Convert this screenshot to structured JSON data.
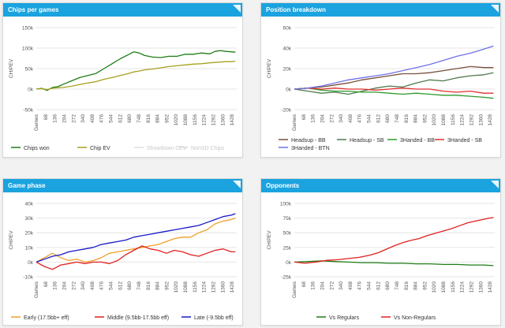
{
  "panels": [
    {
      "title": "Chips per games"
    },
    {
      "title": "Position breakdown"
    },
    {
      "title": "Game phase"
    },
    {
      "title": "Opponents"
    }
  ],
  "chart_data": [
    {
      "type": "line",
      "title": "Chips per games",
      "ylabel": "CHIPEV",
      "x_axis_label": "Games",
      "x_ticks": [
        "68",
        "136",
        "204",
        "272",
        "340",
        "408",
        "476",
        "544",
        "612",
        "680",
        "748",
        "816",
        "884",
        "952",
        "1020",
        "1088",
        "1156",
        "1224",
        "1292",
        "1360",
        "1428"
      ],
      "y_ticks": [
        "-50k",
        "0k",
        "50k",
        "100k",
        "150k"
      ],
      "ylim": [
        -50000,
        150000
      ],
      "xlim": [
        0,
        1480
      ],
      "series": [
        {
          "name": "Chips won",
          "color": "#1e7d16",
          "visible": true,
          "x": [
            0,
            40,
            80,
            120,
            160,
            200,
            260,
            320,
            380,
            440,
            500,
            560,
            620,
            680,
            720,
            760,
            800,
            860,
            920,
            980,
            1040,
            1100,
            1160,
            1220,
            1280,
            1320,
            1360,
            1400,
            1440,
            1470
          ],
          "y": [
            0,
            2000,
            -3000,
            4000,
            6000,
            12000,
            20000,
            28000,
            33000,
            38000,
            50000,
            62000,
            74000,
            84000,
            91000,
            88000,
            82000,
            78000,
            77000,
            80000,
            80000,
            85000,
            85000,
            88000,
            86000,
            92000,
            94000,
            92000,
            91000,
            90000
          ]
        },
        {
          "name": "Chip EV",
          "color": "#a5a11e",
          "visible": true,
          "x": [
            0,
            40,
            80,
            120,
            160,
            200,
            260,
            320,
            380,
            440,
            500,
            560,
            620,
            680,
            720,
            760,
            800,
            860,
            920,
            980,
            1040,
            1100,
            1160,
            1220,
            1280,
            1320,
            1360,
            1400,
            1440,
            1470
          ],
          "y": [
            0,
            1000,
            -1000,
            2000,
            3000,
            4000,
            7000,
            11000,
            15000,
            18000,
            24000,
            28000,
            33000,
            38000,
            42000,
            44000,
            47000,
            49000,
            52000,
            55000,
            57000,
            59000,
            61000,
            62000,
            64000,
            65000,
            66000,
            67000,
            67000,
            68000
          ]
        },
        {
          "name": "Showdown CEV",
          "color": "#dddddd",
          "visible": false
        },
        {
          "name": "NonSD Chips",
          "color": "#dddddd",
          "visible": false
        }
      ]
    },
    {
      "type": "line",
      "title": "Position breakdown",
      "ylabel": "CHIPEV",
      "x_axis_label": "Games",
      "x_ticks": [
        "68",
        "136",
        "204",
        "272",
        "340",
        "408",
        "476",
        "544",
        "612",
        "680",
        "748",
        "816",
        "884",
        "952",
        "1020",
        "1088",
        "1156",
        "1224",
        "1292",
        "1360",
        "1428"
      ],
      "y_ticks": [
        "-20k",
        "0k",
        "20k",
        "40k",
        "60k"
      ],
      "ylim": [
        -20000,
        60000
      ],
      "xlim": [
        0,
        1480
      ],
      "series": [
        {
          "name": "Headsup - BB",
          "color": "#7a4f3a",
          "visible": true,
          "x": [
            0,
            100,
            200,
            300,
            400,
            500,
            600,
            700,
            800,
            900,
            1000,
            1100,
            1200,
            1300,
            1400,
            1470
          ],
          "y": [
            0,
            1000,
            2000,
            4000,
            6000,
            9000,
            11000,
            13000,
            15000,
            15000,
            16000,
            18000,
            20000,
            22000,
            21000,
            21000
          ]
        },
        {
          "name": "Headsup - SB",
          "color": "#4e7a4e",
          "visible": true,
          "x": [
            0,
            100,
            200,
            300,
            400,
            500,
            600,
            700,
            800,
            900,
            1000,
            1100,
            1200,
            1300,
            1400,
            1470
          ],
          "y": [
            0,
            -2000,
            -4000,
            -3000,
            -5000,
            -2000,
            1000,
            3000,
            2000,
            6000,
            9000,
            8000,
            11000,
            13000,
            14000,
            16000
          ]
        },
        {
          "name": "3Handed - BB",
          "color": "#2e9a2e",
          "visible": true,
          "x": [
            0,
            100,
            200,
            300,
            400,
            500,
            600,
            700,
            800,
            900,
            1000,
            1100,
            1200,
            1300,
            1400,
            1470
          ],
          "y": [
            0,
            1000,
            -1000,
            -2000,
            -2000,
            -3000,
            -3000,
            -4000,
            -5000,
            -4000,
            -5000,
            -6000,
            -6000,
            -7000,
            -8000,
            -9000
          ]
        },
        {
          "name": "3Handed - SB",
          "color": "#e03030",
          "visible": true,
          "x": [
            0,
            100,
            200,
            300,
            400,
            500,
            600,
            700,
            800,
            900,
            1000,
            1100,
            1200,
            1300,
            1400,
            1470
          ],
          "y": [
            0,
            1000,
            0,
            1000,
            0,
            0,
            -1000,
            0,
            1000,
            0,
            0,
            -2000,
            -3000,
            -2000,
            -4000,
            -4000
          ]
        },
        {
          "name": "3Handed - BTN",
          "color": "#7070e8",
          "visible": true,
          "x": [
            0,
            100,
            200,
            300,
            400,
            500,
            600,
            700,
            800,
            900,
            1000,
            1100,
            1200,
            1300,
            1400,
            1470
          ],
          "y": [
            0,
            1000,
            3000,
            6000,
            9000,
            11000,
            13000,
            15000,
            18000,
            21000,
            24000,
            28000,
            32000,
            35000,
            39000,
            42000
          ]
        }
      ]
    },
    {
      "type": "line",
      "title": "Game phase",
      "ylabel": "CHIPEV",
      "x_axis_label": "Games",
      "x_ticks": [
        "68",
        "136",
        "204",
        "272",
        "340",
        "408",
        "476",
        "544",
        "612",
        "680",
        "748",
        "816",
        "884",
        "952",
        "1020",
        "1088",
        "1156",
        "1224",
        "1292",
        "1360",
        "1428"
      ],
      "y_ticks": [
        "-10k",
        "0k",
        "10k",
        "20k",
        "30k",
        "40k"
      ],
      "ylim": [
        -10000,
        40000
      ],
      "xlim": [
        0,
        1480
      ],
      "series": [
        {
          "name": "Early (17.5bb+ eff)",
          "color": "#f0a028",
          "visible": true,
          "x": [
            0,
            60,
            120,
            180,
            240,
            300,
            360,
            420,
            480,
            540,
            600,
            660,
            720,
            780,
            840,
            900,
            960,
            1020,
            1080,
            1140,
            1200,
            1260,
            1320,
            1380,
            1440,
            1470
          ],
          "y": [
            0,
            3000,
            6000,
            3000,
            1000,
            2000,
            0,
            1000,
            3000,
            6000,
            7000,
            8000,
            9000,
            10000,
            11000,
            12000,
            14000,
            16000,
            17000,
            17000,
            20000,
            22000,
            26000,
            28000,
            29000,
            30000
          ]
        },
        {
          "name": "Middle (9.5bb-17.5bb eff)",
          "color": "#e02020",
          "visible": true,
          "x": [
            0,
            60,
            120,
            180,
            240,
            300,
            360,
            420,
            480,
            540,
            600,
            660,
            720,
            780,
            840,
            900,
            960,
            1020,
            1080,
            1140,
            1200,
            1260,
            1320,
            1380,
            1440,
            1470
          ],
          "y": [
            0,
            -3000,
            -5000,
            -2000,
            -1000,
            0,
            -1000,
            0,
            0,
            -1000,
            1000,
            5000,
            8000,
            11000,
            9000,
            8000,
            6000,
            8000,
            7000,
            5000,
            4000,
            6000,
            8000,
            9000,
            7000,
            7000
          ]
        },
        {
          "name": "Late (-9.5bb eff)",
          "color": "#1818c8",
          "visible": true,
          "x": [
            0,
            60,
            120,
            180,
            240,
            300,
            360,
            420,
            480,
            540,
            600,
            660,
            720,
            780,
            840,
            900,
            960,
            1020,
            1080,
            1140,
            1200,
            1260,
            1320,
            1380,
            1440,
            1470
          ],
          "y": [
            0,
            2000,
            4000,
            5000,
            7000,
            8000,
            9000,
            10000,
            12000,
            13000,
            14000,
            15000,
            17000,
            18000,
            19000,
            20000,
            21000,
            22000,
            23000,
            24000,
            25000,
            27000,
            29000,
            31000,
            32000,
            33000
          ]
        }
      ]
    },
    {
      "type": "line",
      "title": "Opponents",
      "ylabel": "CHIPEV",
      "x_axis_label": "Games",
      "x_ticks": [
        "68",
        "136",
        "204",
        "272",
        "340",
        "408",
        "476",
        "544",
        "612",
        "680",
        "748",
        "816",
        "884",
        "952",
        "1020",
        "1088",
        "1156",
        "1224",
        "1292",
        "1360",
        "1428"
      ],
      "y_ticks": [
        "-25k",
        "0k",
        "25k",
        "50k",
        "75k",
        "100k"
      ],
      "ylim": [
        -25000,
        100000
      ],
      "xlim": [
        0,
        1480
      ],
      "series": [
        {
          "name": "Vs Regulars",
          "color": "#1e7d16",
          "visible": true,
          "x": [
            0,
            100,
            200,
            300,
            400,
            500,
            600,
            700,
            800,
            900,
            1000,
            1100,
            1200,
            1300,
            1400,
            1470
          ],
          "y": [
            0,
            1000,
            2000,
            1000,
            0,
            -1000,
            -1000,
            -2000,
            -2000,
            -3000,
            -3000,
            -4000,
            -4000,
            -5000,
            -5000,
            -6000
          ]
        },
        {
          "name": "Vs Non-Regulars",
          "color": "#e02020",
          "visible": true,
          "x": [
            0,
            80,
            160,
            240,
            320,
            400,
            480,
            560,
            620,
            680,
            740,
            800,
            860,
            920,
            980,
            1040,
            1100,
            1160,
            1220,
            1280,
            1340,
            1400,
            1440,
            1470
          ],
          "y": [
            0,
            -2000,
            0,
            3000,
            4000,
            6000,
            8000,
            12000,
            16000,
            22000,
            28000,
            33000,
            37000,
            40000,
            45000,
            49000,
            53000,
            57000,
            62000,
            67000,
            70000,
            73000,
            75000,
            76000
          ]
        }
      ]
    }
  ]
}
